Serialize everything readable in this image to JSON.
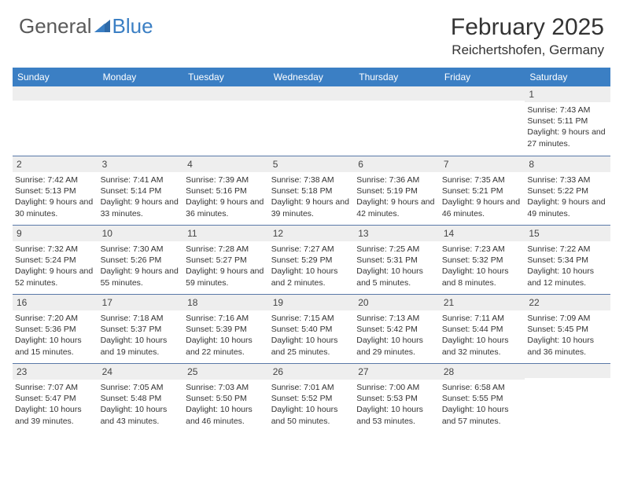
{
  "brand": {
    "part1": "General",
    "part2": "Blue"
  },
  "header": {
    "month_title": "February 2025",
    "location": "Reichertshofen, Germany"
  },
  "style": {
    "header_bg": "#3b7fc4",
    "header_text": "#ffffff",
    "daynum_bg": "#eeeeee",
    "border_color": "#5a7fa8",
    "body_text": "#333333",
    "cell_fontsize": 10.5,
    "head_fontsize": 12
  },
  "day_headers": [
    "Sunday",
    "Monday",
    "Tuesday",
    "Wednesday",
    "Thursday",
    "Friday",
    "Saturday"
  ],
  "labels": {
    "sunrise": "Sunrise:",
    "sunset": "Sunset:",
    "daylight": "Daylight:"
  },
  "weeks": [
    [
      null,
      null,
      null,
      null,
      null,
      null,
      {
        "n": "1",
        "sr": "7:43 AM",
        "ss": "5:11 PM",
        "dl": "9 hours and 27 minutes."
      }
    ],
    [
      {
        "n": "2",
        "sr": "7:42 AM",
        "ss": "5:13 PM",
        "dl": "9 hours and 30 minutes."
      },
      {
        "n": "3",
        "sr": "7:41 AM",
        "ss": "5:14 PM",
        "dl": "9 hours and 33 minutes."
      },
      {
        "n": "4",
        "sr": "7:39 AM",
        "ss": "5:16 PM",
        "dl": "9 hours and 36 minutes."
      },
      {
        "n": "5",
        "sr": "7:38 AM",
        "ss": "5:18 PM",
        "dl": "9 hours and 39 minutes."
      },
      {
        "n": "6",
        "sr": "7:36 AM",
        "ss": "5:19 PM",
        "dl": "9 hours and 42 minutes."
      },
      {
        "n": "7",
        "sr": "7:35 AM",
        "ss": "5:21 PM",
        "dl": "9 hours and 46 minutes."
      },
      {
        "n": "8",
        "sr": "7:33 AM",
        "ss": "5:22 PM",
        "dl": "9 hours and 49 minutes."
      }
    ],
    [
      {
        "n": "9",
        "sr": "7:32 AM",
        "ss": "5:24 PM",
        "dl": "9 hours and 52 minutes."
      },
      {
        "n": "10",
        "sr": "7:30 AM",
        "ss": "5:26 PM",
        "dl": "9 hours and 55 minutes."
      },
      {
        "n": "11",
        "sr": "7:28 AM",
        "ss": "5:27 PM",
        "dl": "9 hours and 59 minutes."
      },
      {
        "n": "12",
        "sr": "7:27 AM",
        "ss": "5:29 PM",
        "dl": "10 hours and 2 minutes."
      },
      {
        "n": "13",
        "sr": "7:25 AM",
        "ss": "5:31 PM",
        "dl": "10 hours and 5 minutes."
      },
      {
        "n": "14",
        "sr": "7:23 AM",
        "ss": "5:32 PM",
        "dl": "10 hours and 8 minutes."
      },
      {
        "n": "15",
        "sr": "7:22 AM",
        "ss": "5:34 PM",
        "dl": "10 hours and 12 minutes."
      }
    ],
    [
      {
        "n": "16",
        "sr": "7:20 AM",
        "ss": "5:36 PM",
        "dl": "10 hours and 15 minutes."
      },
      {
        "n": "17",
        "sr": "7:18 AM",
        "ss": "5:37 PM",
        "dl": "10 hours and 19 minutes."
      },
      {
        "n": "18",
        "sr": "7:16 AM",
        "ss": "5:39 PM",
        "dl": "10 hours and 22 minutes."
      },
      {
        "n": "19",
        "sr": "7:15 AM",
        "ss": "5:40 PM",
        "dl": "10 hours and 25 minutes."
      },
      {
        "n": "20",
        "sr": "7:13 AM",
        "ss": "5:42 PM",
        "dl": "10 hours and 29 minutes."
      },
      {
        "n": "21",
        "sr": "7:11 AM",
        "ss": "5:44 PM",
        "dl": "10 hours and 32 minutes."
      },
      {
        "n": "22",
        "sr": "7:09 AM",
        "ss": "5:45 PM",
        "dl": "10 hours and 36 minutes."
      }
    ],
    [
      {
        "n": "23",
        "sr": "7:07 AM",
        "ss": "5:47 PM",
        "dl": "10 hours and 39 minutes."
      },
      {
        "n": "24",
        "sr": "7:05 AM",
        "ss": "5:48 PM",
        "dl": "10 hours and 43 minutes."
      },
      {
        "n": "25",
        "sr": "7:03 AM",
        "ss": "5:50 PM",
        "dl": "10 hours and 46 minutes."
      },
      {
        "n": "26",
        "sr": "7:01 AM",
        "ss": "5:52 PM",
        "dl": "10 hours and 50 minutes."
      },
      {
        "n": "27",
        "sr": "7:00 AM",
        "ss": "5:53 PM",
        "dl": "10 hours and 53 minutes."
      },
      {
        "n": "28",
        "sr": "6:58 AM",
        "ss": "5:55 PM",
        "dl": "10 hours and 57 minutes."
      },
      null
    ]
  ]
}
